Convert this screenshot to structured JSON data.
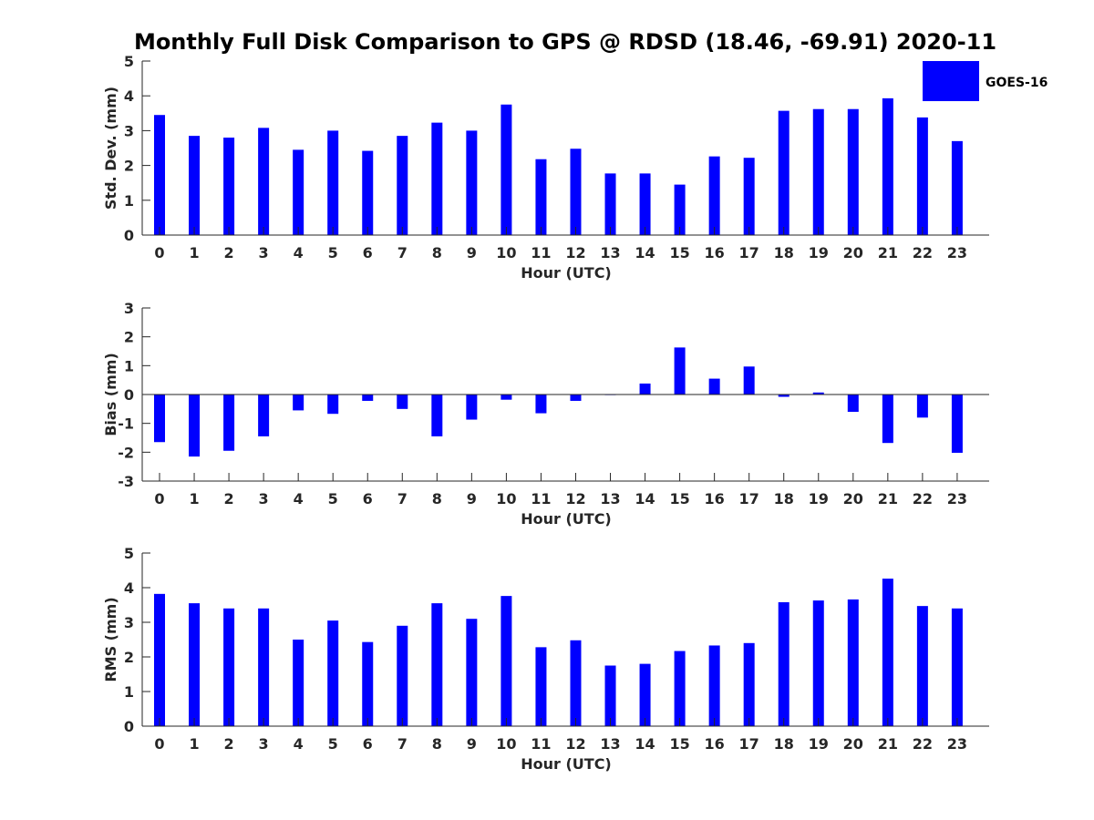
{
  "title": "Monthly Full Disk Comparison to GPS @ RDSD (18.46, -69.91) 2020-11",
  "legend": {
    "label": "GOES-16",
    "color": "#0000ff",
    "placement": "top-right"
  },
  "chart_data": [
    {
      "type": "bar",
      "ylabel": "Std. Dev. (mm)",
      "xlabel": "Hour (UTC)",
      "ylim": [
        0,
        5
      ],
      "yticks": [
        0,
        1,
        2,
        3,
        4,
        5
      ],
      "categories": [
        "0",
        "1",
        "2",
        "3",
        "4",
        "5",
        "6",
        "7",
        "8",
        "9",
        "10",
        "11",
        "12",
        "13",
        "14",
        "15",
        "16",
        "17",
        "18",
        "19",
        "20",
        "21",
        "22",
        "23"
      ],
      "series": [
        {
          "name": "GOES-16",
          "color": "#0000ff",
          "values": [
            3.45,
            2.85,
            2.8,
            3.08,
            2.45,
            3.0,
            2.42,
            2.85,
            3.23,
            3.0,
            3.75,
            2.18,
            2.48,
            1.77,
            1.77,
            1.45,
            2.26,
            2.22,
            3.57,
            3.62,
            3.62,
            3.93,
            3.38,
            2.7
          ]
        }
      ],
      "grid": false
    },
    {
      "type": "bar",
      "ylabel": "Bias (mm)",
      "xlabel": "Hour (UTC)",
      "ylim": [
        -3,
        3
      ],
      "yticks": [
        -3,
        -2,
        -1,
        0,
        1,
        2,
        3
      ],
      "categories": [
        "0",
        "1",
        "2",
        "3",
        "4",
        "5",
        "6",
        "7",
        "8",
        "9",
        "10",
        "11",
        "12",
        "13",
        "14",
        "15",
        "16",
        "17",
        "18",
        "19",
        "20",
        "21",
        "22",
        "23"
      ],
      "series": [
        {
          "name": "GOES-16",
          "color": "#0000ff",
          "values": [
            -1.65,
            -2.15,
            -1.95,
            -1.45,
            -0.55,
            -0.67,
            -0.22,
            -0.5,
            -1.45,
            -0.87,
            -0.18,
            -0.65,
            -0.22,
            -0.02,
            0.38,
            1.63,
            0.55,
            0.97,
            -0.08,
            0.07,
            -0.6,
            -1.68,
            -0.8,
            -2.02
          ]
        }
      ],
      "grid": false
    },
    {
      "type": "bar",
      "ylabel": "RMS (mm)",
      "xlabel": "Hour (UTC)",
      "ylim": [
        0,
        5
      ],
      "yticks": [
        0,
        1,
        2,
        3,
        4,
        5
      ],
      "categories": [
        "0",
        "1",
        "2",
        "3",
        "4",
        "5",
        "6",
        "7",
        "8",
        "9",
        "10",
        "11",
        "12",
        "13",
        "14",
        "15",
        "16",
        "17",
        "18",
        "19",
        "20",
        "21",
        "22",
        "23"
      ],
      "series": [
        {
          "name": "GOES-16",
          "color": "#0000ff",
          "values": [
            3.82,
            3.55,
            3.4,
            3.4,
            2.5,
            3.05,
            2.43,
            2.9,
            3.55,
            3.1,
            3.76,
            2.28,
            2.48,
            1.75,
            1.8,
            2.17,
            2.33,
            2.4,
            3.58,
            3.63,
            3.66,
            4.26,
            3.47,
            3.4
          ]
        }
      ],
      "grid": false
    }
  ]
}
